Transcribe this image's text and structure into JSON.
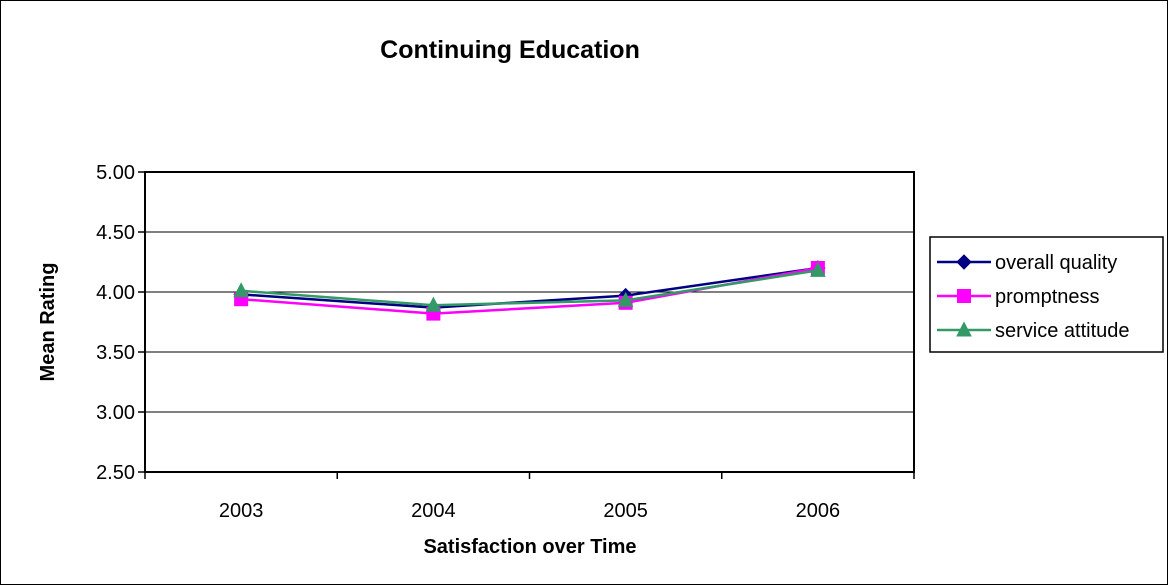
{
  "chart_data": {
    "type": "line",
    "title": "Continuing Education",
    "xlabel": "Satisfaction over Time",
    "ylabel": "Mean Rating",
    "categories": [
      "2003",
      "2004",
      "2005",
      "2006"
    ],
    "ylim": [
      2.5,
      5.0
    ],
    "yticks": [
      "2.50",
      "3.00",
      "3.50",
      "4.00",
      "4.50",
      "5.00"
    ],
    "grid": true,
    "legend_position": "right",
    "series": [
      {
        "name": "overall quality",
        "values": [
          3.98,
          3.87,
          3.97,
          4.2
        ],
        "color": "#000080",
        "marker": "diamond"
      },
      {
        "name": "promptness",
        "values": [
          3.94,
          3.82,
          3.91,
          4.2
        ],
        "color": "#FF00FF",
        "marker": "square"
      },
      {
        "name": "service attitude",
        "values": [
          4.01,
          3.89,
          3.93,
          4.18
        ],
        "color": "#339966",
        "marker": "triangle"
      }
    ]
  }
}
